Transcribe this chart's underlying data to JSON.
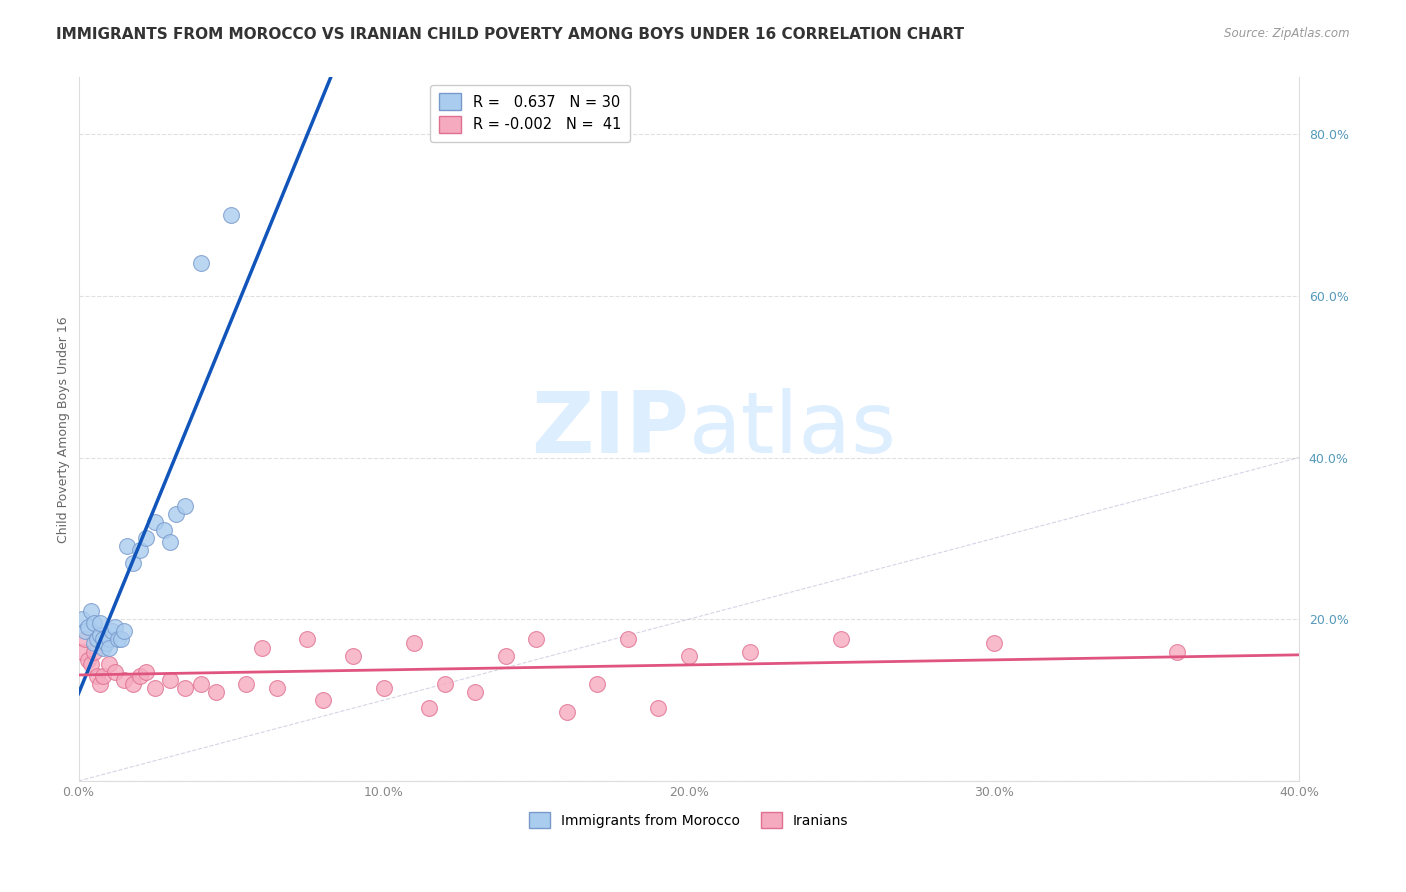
{
  "title": "IMMIGRANTS FROM MOROCCO VS IRANIAN CHILD POVERTY AMONG BOYS UNDER 16 CORRELATION CHART",
  "source": "Source: ZipAtlas.com",
  "ylabel": "Child Poverty Among Boys Under 16",
  "xlim": [
    0.0,
    0.4
  ],
  "ylim": [
    0.0,
    0.87
  ],
  "xticks": [
    0.0,
    0.1,
    0.2,
    0.3,
    0.4
  ],
  "yticks": [
    0.0,
    0.2,
    0.4,
    0.6,
    0.8
  ],
  "xtick_labels": [
    "0.0%",
    "10.0%",
    "20.0%",
    "30.0%",
    "40.0%"
  ],
  "ytick_labels_right": [
    "",
    "20.0%",
    "40.0%",
    "60.0%",
    "80.0%"
  ],
  "r_morocco": 0.637,
  "n_morocco": 30,
  "r_iranian": -0.002,
  "n_iranian": 41,
  "morocco_color": "#aaccee",
  "iranian_color": "#f5aac0",
  "morocco_edge": "#7799cc",
  "iranian_edge": "#e07090",
  "trend_morocco_color": "#1155bb",
  "trend_iranian_color": "#e05580",
  "background_color": "#ffffff",
  "grid_color": "#cccccc",
  "watermark_color": "#ddeeff",
  "morocco_x": [
    0.001,
    0.002,
    0.003,
    0.004,
    0.005,
    0.005,
    0.006,
    0.007,
    0.007,
    0.008,
    0.008,
    0.009,
    0.01,
    0.01,
    0.011,
    0.012,
    0.013,
    0.014,
    0.015,
    0.016,
    0.018,
    0.02,
    0.022,
    0.025,
    0.028,
    0.03,
    0.032,
    0.035,
    0.04,
    0.05
  ],
  "morocco_y": [
    0.2,
    0.185,
    0.19,
    0.21,
    0.195,
    0.17,
    0.175,
    0.18,
    0.195,
    0.175,
    0.165,
    0.17,
    0.175,
    0.165,
    0.185,
    0.19,
    0.175,
    0.175,
    0.185,
    0.29,
    0.27,
    0.285,
    0.3,
    0.32,
    0.31,
    0.295,
    0.33,
    0.34,
    0.64,
    0.7
  ],
  "iranian_x": [
    0.001,
    0.002,
    0.003,
    0.004,
    0.005,
    0.006,
    0.007,
    0.008,
    0.01,
    0.012,
    0.015,
    0.018,
    0.02,
    0.022,
    0.025,
    0.03,
    0.035,
    0.04,
    0.045,
    0.055,
    0.06,
    0.065,
    0.075,
    0.08,
    0.09,
    0.1,
    0.11,
    0.115,
    0.12,
    0.13,
    0.14,
    0.15,
    0.16,
    0.17,
    0.18,
    0.19,
    0.2,
    0.22,
    0.25,
    0.3,
    0.36
  ],
  "iranian_y": [
    0.16,
    0.175,
    0.15,
    0.145,
    0.16,
    0.13,
    0.12,
    0.13,
    0.145,
    0.135,
    0.125,
    0.12,
    0.13,
    0.135,
    0.115,
    0.125,
    0.115,
    0.12,
    0.11,
    0.12,
    0.165,
    0.115,
    0.175,
    0.1,
    0.155,
    0.115,
    0.17,
    0.09,
    0.12,
    0.11,
    0.155,
    0.175,
    0.085,
    0.12,
    0.175,
    0.09,
    0.155,
    0.16,
    0.175,
    0.17,
    0.16
  ],
  "title_fontsize": 11,
  "axis_fontsize": 9,
  "tick_fontsize": 9,
  "marker_size": 130
}
